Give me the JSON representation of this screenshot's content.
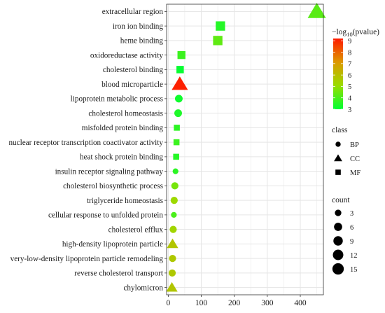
{
  "chart_data": {
    "type": "scatter",
    "xlim": [
      -5,
      470
    ],
    "x_ticks": [
      0,
      100,
      200,
      300,
      400
    ],
    "grid": true,
    "legend_position": "right",
    "categories": [
      "extracellular region",
      "iron ion binding",
      "heme binding",
      "oxidoreductase activity",
      "cholesterol binding",
      "blood microparticle",
      "lipoprotein metabolic process",
      "cholesterol homeostasis",
      "misfolded protein binding",
      "nuclear receptor transcription coactivator activity",
      "heat shock protein binding",
      "insulin receptor signaling pathway",
      "cholesterol biosynthetic process",
      "triglyceride homeostasis",
      "cellular response to unfolded protein",
      "cholesterol efflux",
      "high-density lipoprotein particle",
      "very-low-density lipoprotein particle remodeling",
      "reverse cholesterol transport",
      "chylomicron"
    ],
    "points": [
      {
        "term": "extracellular region",
        "x": 450,
        "class": "CC",
        "count": 15,
        "neglog10p": 4.2
      },
      {
        "term": "iron ion binding",
        "x": 158,
        "class": "MF",
        "count": 8,
        "neglog10p": 3.5
      },
      {
        "term": "heme binding",
        "x": 150,
        "class": "MF",
        "count": 8,
        "neglog10p": 4.3
      },
      {
        "term": "oxidoreductase activity",
        "x": 40,
        "class": "MF",
        "count": 5,
        "neglog10p": 3.8
      },
      {
        "term": "cholesterol binding",
        "x": 36,
        "class": "MF",
        "count": 4,
        "neglog10p": 3.1
      },
      {
        "term": "blood microparticle",
        "x": 35,
        "class": "CC",
        "count": 11,
        "neglog10p": 9.1
      },
      {
        "term": "lipoprotein metabolic process",
        "x": 32,
        "class": "BP",
        "count": 5,
        "neglog10p": 3.2
      },
      {
        "term": "cholesterol homeostasis",
        "x": 30,
        "class": "BP",
        "count": 5,
        "neglog10p": 3.4
      },
      {
        "term": "misfolded protein binding",
        "x": 26,
        "class": "MF",
        "count": 2,
        "neglog10p": 3.6
      },
      {
        "term": "nuclear receptor transcription coactivator activity",
        "x": 25,
        "class": "MF",
        "count": 2,
        "neglog10p": 3.8
      },
      {
        "term": "heat shock protein binding",
        "x": 24,
        "class": "MF",
        "count": 2,
        "neglog10p": 3.5
      },
      {
        "term": "insulin receptor signaling pathway",
        "x": 22,
        "class": "BP",
        "count": 2,
        "neglog10p": 3.6
      },
      {
        "term": "cholesterol biosynthetic process",
        "x": 20,
        "class": "BP",
        "count": 4,
        "neglog10p": 4.6
      },
      {
        "term": "triglyceride homeostasis",
        "x": 18,
        "class": "BP",
        "count": 4,
        "neglog10p": 5.2
      },
      {
        "term": "cellular response to unfolded protein",
        "x": 17,
        "class": "BP",
        "count": 2,
        "neglog10p": 4.0
      },
      {
        "term": "cholesterol efflux",
        "x": 15,
        "class": "BP",
        "count": 4,
        "neglog10p": 5.3
      },
      {
        "term": "high-density lipoprotein particle",
        "x": 13,
        "class": "CC",
        "count": 4,
        "neglog10p": 5.8
      },
      {
        "term": "very-low-density lipoprotein particle remodeling",
        "x": 13,
        "class": "BP",
        "count": 4,
        "neglog10p": 5.7
      },
      {
        "term": "reverse cholesterol transport",
        "x": 12,
        "class": "BP",
        "count": 4,
        "neglog10p": 5.7
      },
      {
        "term": "chylomicron",
        "x": 11,
        "class": "CC",
        "count": 4,
        "neglog10p": 5.8
      }
    ],
    "color_legend": {
      "title_prefix": "−log",
      "title_subscript": "10",
      "title_suffix": "(pvalue)",
      "range": [
        3,
        9.2
      ],
      "ticks": [
        "9",
        "8",
        "7",
        "6",
        "5",
        "4",
        "3"
      ],
      "colors": [
        "#00ff33",
        "#99dd00",
        "#dd9900",
        "#ff1a00"
      ]
    },
    "class_legend": {
      "title": "class",
      "items": [
        {
          "label": "BP",
          "shape": "circle"
        },
        {
          "label": "CC",
          "shape": "triangle"
        },
        {
          "label": "MF",
          "shape": "square"
        }
      ]
    },
    "count_legend": {
      "title": "count",
      "items": [
        {
          "label": "3",
          "value": 3
        },
        {
          "label": "6",
          "value": 6
        },
        {
          "label": "9",
          "value": 9
        },
        {
          "label": "12",
          "value": 12
        },
        {
          "label": "15",
          "value": 15
        }
      ]
    },
    "panel_background": "#ffffff",
    "grid_color": "#e5e5e5"
  }
}
